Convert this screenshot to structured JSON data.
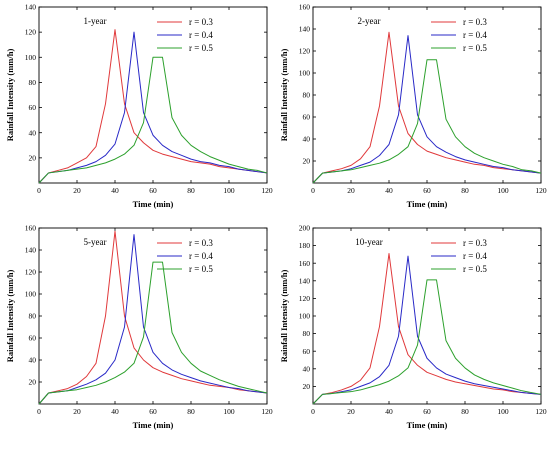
{
  "chart_data": [
    {
      "type": "line",
      "title": "1-year",
      "xlabel": "Time (min)",
      "ylabel": "Rainfall Intensity (mm/h)",
      "xlim": [
        0,
        120
      ],
      "ylim": [
        0,
        140
      ],
      "xticks": [
        0,
        20,
        40,
        60,
        80,
        100,
        120
      ],
      "yticks": [
        20,
        40,
        60,
        80,
        100,
        120,
        140
      ],
      "legend_position": "top-right",
      "series": [
        {
          "name": "r = 0.3",
          "color": "#e0393b",
          "x": [
            0,
            5,
            10,
            15,
            20,
            25,
            30,
            35,
            40,
            45,
            50,
            55,
            60,
            65,
            70,
            75,
            80,
            85,
            90,
            95,
            100,
            105,
            110,
            115,
            120
          ],
          "y": [
            0,
            8,
            10,
            12,
            16,
            20,
            29,
            63,
            122,
            63,
            40,
            32,
            26,
            23,
            21,
            19,
            17,
            16,
            15,
            13,
            12,
            11,
            10,
            9,
            8
          ]
        },
        {
          "name": "r = 0.4",
          "color": "#2929c7",
          "x": [
            0,
            5,
            10,
            15,
            20,
            25,
            30,
            35,
            40,
            45,
            50,
            55,
            60,
            65,
            70,
            75,
            80,
            85,
            90,
            95,
            100,
            105,
            110,
            115,
            120
          ],
          "y": [
            0,
            8,
            9,
            10,
            12,
            14,
            17,
            22,
            31,
            56,
            120,
            56,
            38,
            30,
            25,
            22,
            19,
            17,
            16,
            14,
            13,
            11,
            10,
            9,
            8
          ]
        },
        {
          "name": "r = 0.5",
          "color": "#2ca02c",
          "x": [
            0,
            5,
            10,
            15,
            20,
            25,
            30,
            35,
            40,
            45,
            50,
            55,
            60,
            62,
            65,
            70,
            75,
            80,
            85,
            90,
            95,
            100,
            105,
            110,
            115,
            120
          ],
          "y": [
            0,
            8,
            9,
            10,
            11,
            12,
            14,
            16,
            19,
            23,
            30,
            48,
            100,
            100,
            100,
            52,
            38,
            30,
            25,
            21,
            18,
            15,
            13,
            11,
            10,
            8
          ]
        }
      ]
    },
    {
      "type": "line",
      "title": "2-year",
      "xlabel": "Time (min)",
      "ylabel": "Rainfall Intensity (mm/h)",
      "xlim": [
        0,
        120
      ],
      "ylim": [
        0,
        160
      ],
      "xticks": [
        0,
        20,
        40,
        60,
        80,
        100,
        120
      ],
      "yticks": [
        20,
        40,
        60,
        80,
        100,
        120,
        140,
        160
      ],
      "legend_position": "top-right",
      "series": [
        {
          "name": "r = 0.3",
          "color": "#e0393b",
          "x": [
            0,
            5,
            10,
            15,
            20,
            25,
            30,
            35,
            40,
            45,
            50,
            55,
            60,
            65,
            70,
            75,
            80,
            85,
            90,
            95,
            100,
            105,
            110,
            115,
            120
          ],
          "y": [
            0,
            9,
            11,
            13,
            16,
            22,
            33,
            70,
            137,
            70,
            45,
            35,
            29,
            26,
            23,
            21,
            19,
            17,
            16,
            14,
            13,
            12,
            11,
            10,
            9
          ]
        },
        {
          "name": "r = 0.4",
          "color": "#2929c7",
          "x": [
            0,
            5,
            10,
            15,
            20,
            25,
            30,
            35,
            40,
            45,
            50,
            55,
            60,
            65,
            70,
            75,
            80,
            85,
            90,
            95,
            100,
            105,
            110,
            115,
            120
          ],
          "y": [
            0,
            9,
            10,
            11,
            13,
            16,
            19,
            25,
            35,
            62,
            134,
            62,
            42,
            33,
            28,
            24,
            21,
            19,
            17,
            15,
            14,
            12,
            11,
            10,
            9
          ]
        },
        {
          "name": "r = 0.5",
          "color": "#2ca02c",
          "x": [
            0,
            5,
            10,
            15,
            20,
            25,
            30,
            35,
            40,
            45,
            50,
            55,
            60,
            62,
            65,
            70,
            75,
            80,
            85,
            90,
            95,
            100,
            105,
            110,
            115,
            120
          ],
          "y": [
            0,
            9,
            10,
            11,
            12,
            14,
            16,
            18,
            21,
            26,
            33,
            54,
            112,
            112,
            112,
            58,
            42,
            33,
            27,
            23,
            20,
            17,
            15,
            12,
            11,
            9
          ]
        }
      ]
    },
    {
      "type": "line",
      "title": "5-year",
      "xlabel": "Time (min)",
      "ylabel": "Rainfall Intensity (mm/h)",
      "xlim": [
        0,
        120
      ],
      "ylim": [
        0,
        160
      ],
      "xticks": [
        0,
        20,
        40,
        60,
        80,
        100,
        120
      ],
      "yticks": [
        20,
        40,
        60,
        80,
        100,
        120,
        140,
        160
      ],
      "legend_position": "top-right",
      "series": [
        {
          "name": "r = 0.3",
          "color": "#e0393b",
          "x": [
            0,
            5,
            10,
            15,
            20,
            25,
            30,
            35,
            40,
            45,
            50,
            55,
            60,
            65,
            70,
            75,
            80,
            85,
            90,
            95,
            100,
            105,
            110,
            115,
            120
          ],
          "y": [
            0,
            10,
            12,
            14,
            18,
            25,
            37,
            80,
            157,
            80,
            51,
            40,
            33,
            29,
            26,
            23,
            21,
            19,
            17,
            16,
            15,
            13,
            12,
            11,
            10
          ]
        },
        {
          "name": "r = 0.4",
          "color": "#2929c7",
          "x": [
            0,
            5,
            10,
            15,
            20,
            25,
            30,
            35,
            40,
            45,
            50,
            55,
            60,
            65,
            70,
            75,
            80,
            85,
            90,
            95,
            100,
            105,
            110,
            115,
            120
          ],
          "y": [
            0,
            10,
            11,
            12,
            15,
            18,
            22,
            28,
            40,
            70,
            154,
            70,
            47,
            37,
            31,
            27,
            24,
            21,
            19,
            17,
            15,
            14,
            12,
            11,
            10
          ]
        },
        {
          "name": "r = 0.5",
          "color": "#2ca02c",
          "x": [
            0,
            5,
            10,
            15,
            20,
            25,
            30,
            35,
            40,
            45,
            50,
            55,
            60,
            62,
            65,
            70,
            75,
            80,
            85,
            90,
            95,
            100,
            105,
            110,
            115,
            120
          ],
          "y": [
            0,
            10,
            11,
            12,
            13,
            15,
            17,
            20,
            24,
            29,
            37,
            61,
            129,
            129,
            129,
            65,
            47,
            37,
            30,
            26,
            22,
            19,
            16,
            14,
            12,
            10
          ]
        }
      ]
    },
    {
      "type": "line",
      "title": "10-year",
      "xlabel": "Time (min)",
      "ylabel": "Rainfall Intensity (mm/h)",
      "xlim": [
        0,
        120
      ],
      "ylim": [
        0,
        200
      ],
      "xticks": [
        0,
        20,
        40,
        60,
        80,
        100,
        120
      ],
      "yticks": [
        20,
        40,
        60,
        80,
        100,
        120,
        140,
        160,
        180,
        200
      ],
      "legend_position": "top-right",
      "series": [
        {
          "name": "r = 0.3",
          "color": "#e0393b",
          "x": [
            0,
            5,
            10,
            15,
            20,
            25,
            30,
            35,
            40,
            45,
            50,
            55,
            60,
            65,
            70,
            75,
            80,
            85,
            90,
            95,
            100,
            105,
            110,
            115,
            120
          ],
          "y": [
            0,
            11,
            13,
            16,
            20,
            27,
            41,
            88,
            171,
            88,
            56,
            44,
            36,
            32,
            28,
            25,
            23,
            21,
            19,
            17,
            16,
            14,
            13,
            12,
            11
          ]
        },
        {
          "name": "r = 0.4",
          "color": "#2929c7",
          "x": [
            0,
            5,
            10,
            15,
            20,
            25,
            30,
            35,
            40,
            45,
            50,
            55,
            60,
            65,
            70,
            75,
            80,
            85,
            90,
            95,
            100,
            105,
            110,
            115,
            120
          ],
          "y": [
            0,
            11,
            12,
            14,
            16,
            20,
            24,
            31,
            44,
            77,
            168,
            77,
            52,
            41,
            34,
            30,
            26,
            23,
            21,
            19,
            17,
            15,
            13,
            12,
            11
          ]
        },
        {
          "name": "r = 0.5",
          "color": "#2ca02c",
          "x": [
            0,
            5,
            10,
            15,
            20,
            25,
            30,
            35,
            40,
            45,
            50,
            55,
            60,
            62,
            65,
            70,
            75,
            80,
            85,
            90,
            95,
            100,
            105,
            110,
            115,
            120
          ],
          "y": [
            0,
            11,
            12,
            13,
            14,
            16,
            19,
            22,
            26,
            32,
            41,
            67,
            141,
            141,
            141,
            72,
            52,
            41,
            33,
            28,
            24,
            21,
            18,
            15,
            13,
            11
          ]
        }
      ]
    }
  ]
}
